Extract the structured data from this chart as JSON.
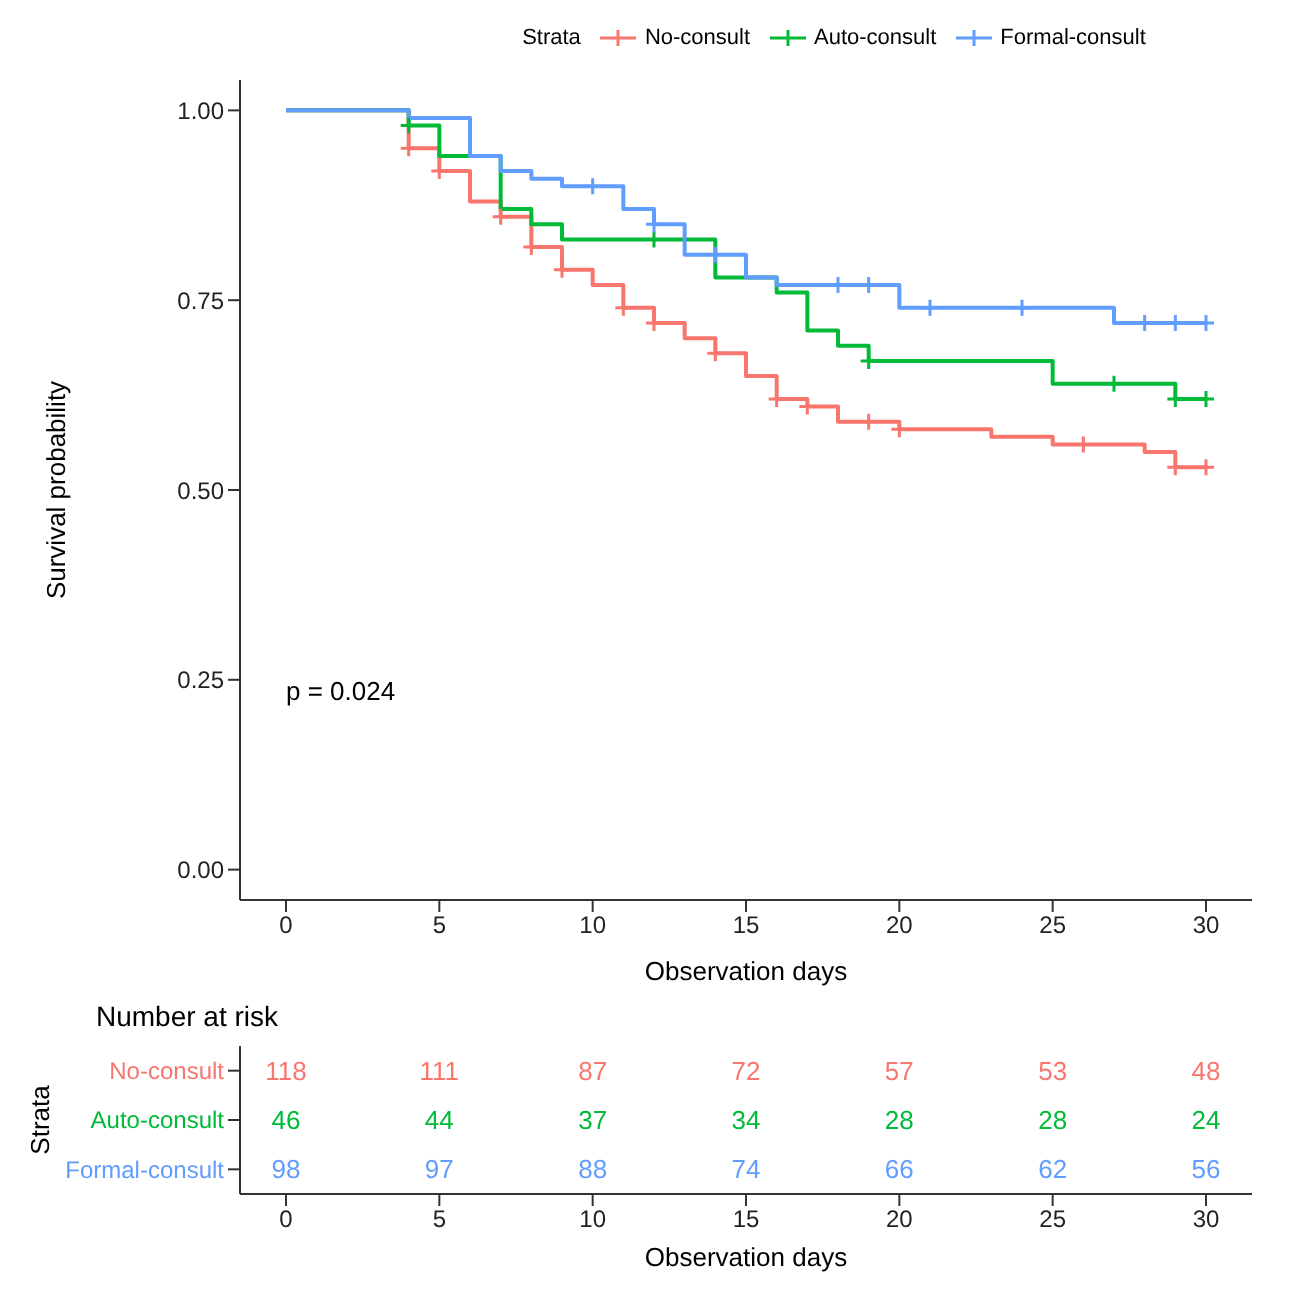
{
  "chart_data": [
    {
      "type": "step",
      "xlabel": "Observation days",
      "ylabel": "Survival probability",
      "legend_title": "Strata",
      "legend": "top",
      "grid": false,
      "xlim": [
        -1.5,
        31.5
      ],
      "xticks": [
        0,
        5,
        10,
        15,
        20,
        25,
        30
      ],
      "ylim": [
        -0.04,
        1.04
      ],
      "yticks": [
        {
          "value": 0,
          "label": "0.00"
        },
        {
          "value": 0.25,
          "label": "0.25"
        },
        {
          "value": 0.5,
          "label": "0.50"
        },
        {
          "value": 0.75,
          "label": "0.75"
        },
        {
          "value": 1,
          "label": "1.00"
        }
      ],
      "annotations": [
        "p = 0.024"
      ],
      "series": [
        {
          "name": "No-consult",
          "type": "step",
          "color": "#f8766d",
          "x": [
            0,
            4,
            5,
            6,
            7,
            8,
            9,
            10,
            11,
            12,
            13,
            14,
            15,
            16,
            17,
            18,
            20,
            23,
            25,
            28,
            29,
            30
          ],
          "values": [
            1,
            0.95,
            0.92,
            0.88,
            0.86,
            0.82,
            0.79,
            0.77,
            0.74,
            0.72,
            0.7,
            0.68,
            0.65,
            0.62,
            0.61,
            0.59,
            0.58,
            0.57,
            0.56,
            0.55,
            0.53,
            0.53
          ]
        },
        {
          "name": "Auto-consult",
          "type": "step",
          "color": "#00ba38",
          "x": [
            0,
            4,
            5,
            7,
            8,
            9,
            14,
            16,
            17,
            18,
            19,
            25,
            29,
            30
          ],
          "values": [
            1,
            0.98,
            0.94,
            0.87,
            0.85,
            0.83,
            0.78,
            0.76,
            0.71,
            0.69,
            0.67,
            0.64,
            0.62,
            0.62
          ]
        },
        {
          "name": "Formal-consult",
          "type": "step",
          "color": "#619cff",
          "x": [
            0,
            4,
            6,
            7,
            8,
            9,
            11,
            12,
            13,
            15,
            16,
            20,
            27,
            30
          ],
          "values": [
            1,
            0.99,
            0.94,
            0.92,
            0.91,
            0.9,
            0.87,
            0.85,
            0.81,
            0.78,
            0.77,
            0.74,
            0.72,
            0.72
          ]
        },
        {
          "type": "scatter",
          "marker": "cross",
          "color": "#f8766d",
          "x": [
            4,
            5,
            7,
            8,
            9,
            11,
            12,
            14,
            16,
            17,
            19,
            20,
            26,
            29,
            30
          ],
          "values": [
            0.95,
            0.92,
            0.86,
            0.82,
            0.79,
            0.74,
            0.72,
            0.68,
            0.62,
            0.61,
            0.59,
            0.58,
            0.56,
            0.53,
            0.53
          ]
        },
        {
          "type": "scatter",
          "marker": "cross",
          "color": "#00ba38",
          "x": [
            4,
            12,
            19,
            27,
            29,
            30
          ],
          "values": [
            0.98,
            0.83,
            0.67,
            0.64,
            0.62,
            0.62
          ]
        },
        {
          "type": "scatter",
          "marker": "cross",
          "color": "#619cff",
          "x": [
            10,
            12,
            14,
            18,
            19,
            21,
            24,
            28,
            29,
            30
          ],
          "values": [
            0.9,
            0.85,
            0.81,
            0.77,
            0.77,
            0.74,
            0.74,
            0.72,
            0.72,
            0.72
          ]
        }
      ]
    },
    {
      "type": "heatmap",
      "title": "Number at risk",
      "xlabel": "Observation days",
      "ylabel": "Strata",
      "data_labels": true,
      "categories": [
        "0",
        "5",
        "10",
        "15",
        "20",
        "25",
        "30"
      ],
      "y_categories": [
        "No-consult",
        "Auto-consult",
        "Formal-consult"
      ],
      "colors": [
        "#f8766d",
        "#00ba38",
        "#619cff"
      ],
      "cells": [
        [
          118,
          111,
          87,
          72,
          57,
          53,
          48
        ],
        [
          46,
          44,
          37,
          34,
          28,
          28,
          24
        ],
        [
          98,
          97,
          88,
          74,
          66,
          62,
          56
        ]
      ]
    }
  ]
}
